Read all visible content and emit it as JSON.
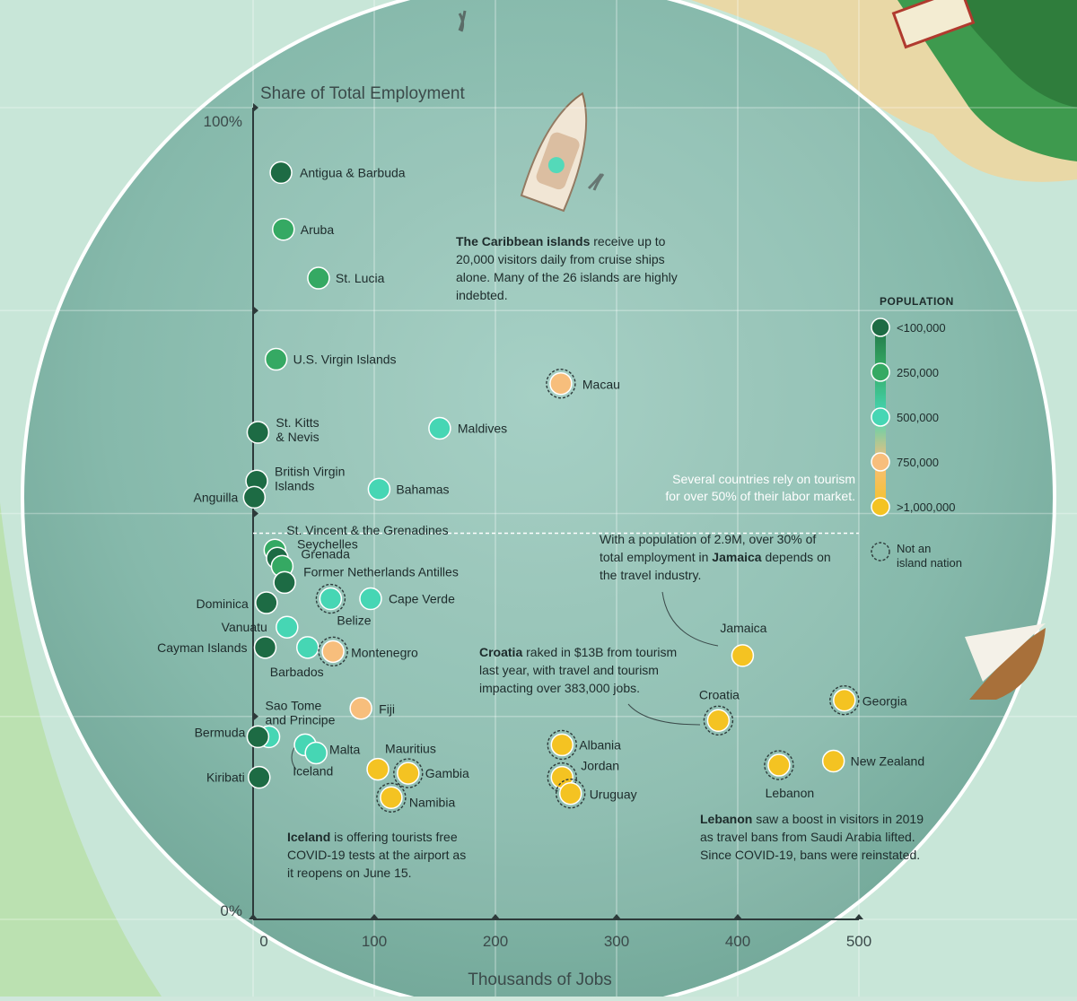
{
  "chart_data": {
    "type": "scatter",
    "xlabel": "Thousands of Jobs",
    "ylabel": "Share of Total Employment",
    "xlim": [
      0,
      500
    ],
    "ylim": [
      0,
      100
    ],
    "x_ticks": [
      "0",
      "100",
      "200",
      "300",
      "400",
      "500"
    ],
    "y_ticks": [
      "0%",
      "100%"
    ],
    "grid": true,
    "legend": {
      "title": "POPULATION",
      "placement": "right",
      "entries": [
        "<100,000",
        "250,000",
        "500,000",
        "750,000",
        ">1,000,000"
      ],
      "colors": [
        "#1d6b44",
        "#35a963",
        "#46d6b4",
        "#f7be7c",
        "#f4c322"
      ],
      "not_island_label": "Not an island nation"
    },
    "threshold_note": "Several countries rely on tourism for over 50% of their labor market.",
    "threshold_value": 50,
    "points": [
      {
        "label": "Antigua & Barbuda",
        "x": 23,
        "y": 92,
        "pop": "<100,000"
      },
      {
        "label": "Aruba",
        "x": 25,
        "y": 85,
        "pop": "250,000"
      },
      {
        "label": "St. Lucia",
        "x": 54,
        "y": 79,
        "pop": "250,000"
      },
      {
        "label": "U.S. Virgin Islands",
        "x": 19,
        "y": 69,
        "pop": "250,000"
      },
      {
        "label": "Macau",
        "x": 254,
        "y": 66,
        "pop": "750,000",
        "not_island": true
      },
      {
        "label": "St. Kitts & Nevis",
        "x": 4,
        "y": 60,
        "pop": "<100,000"
      },
      {
        "label": "Maldives",
        "x": 154,
        "y": 60.5,
        "pop": "500,000"
      },
      {
        "label": "British Virgin Islands",
        "x": 3,
        "y": 54,
        "pop": "<100,000"
      },
      {
        "label": "Anguilla",
        "x": 1,
        "y": 52,
        "pop": "<100,000"
      },
      {
        "label": "Bahamas",
        "x": 104,
        "y": 53,
        "pop": "500,000"
      },
      {
        "label": "St. Vincent & the Grenadines",
        "x": 18,
        "y": 45.5,
        "pop": "250,000"
      },
      {
        "label": "Seychelles",
        "x": 20,
        "y": 44.5,
        "pop": "<100,000"
      },
      {
        "label": "Grenada",
        "x": 24,
        "y": 43.5,
        "pop": "250,000"
      },
      {
        "label": "Former Netherlands Antilles",
        "x": 26,
        "y": 41.5,
        "pop": "<100,000"
      },
      {
        "label": "Dominica",
        "x": 11,
        "y": 39,
        "pop": "<100,000"
      },
      {
        "label": "Belize",
        "x": 64,
        "y": 39.5,
        "pop": "500,000",
        "not_island": true
      },
      {
        "label": "Cape Verde",
        "x": 97,
        "y": 39.5,
        "pop": "500,000"
      },
      {
        "label": "Vanuatu",
        "x": 28,
        "y": 36,
        "pop": "500,000"
      },
      {
        "label": "Cayman Islands",
        "x": 10,
        "y": 33.5,
        "pop": "<100,000"
      },
      {
        "label": "Barbados",
        "x": 45,
        "y": 33.5,
        "pop": "500,000"
      },
      {
        "label": "Montenegro",
        "x": 66,
        "y": 33,
        "pop": "750,000",
        "not_island": true
      },
      {
        "label": "Sao Tome and Principe",
        "x": 13,
        "y": 22.5,
        "pop": "500,000"
      },
      {
        "label": "Fiji",
        "x": 89,
        "y": 26,
        "pop": "750,000"
      },
      {
        "label": "Bermuda",
        "x": 4,
        "y": 22.5,
        "pop": "<100,000"
      },
      {
        "label": "Malta",
        "x": 43,
        "y": 21.5,
        "pop": "500,000"
      },
      {
        "label": "Iceland",
        "x": 52,
        "y": 20.5,
        "pop": "500,000"
      },
      {
        "label": "Kiribati",
        "x": 5,
        "y": 17.5,
        "pop": "<100,000"
      },
      {
        "label": "Mauritius",
        "x": 103,
        "y": 18.5,
        "pop": ">1,000,000"
      },
      {
        "label": "Gambia",
        "x": 128,
        "y": 18,
        "pop": ">1,000,000",
        "not_island": true
      },
      {
        "label": "Namibia",
        "x": 114,
        "y": 15,
        "pop": ">1,000,000",
        "not_island": true
      },
      {
        "label": "Albania",
        "x": 255,
        "y": 21.5,
        "pop": ">1,000,000",
        "not_island": true
      },
      {
        "label": "Jordan",
        "x": 255,
        "y": 17.5,
        "pop": ">1,000,000",
        "not_island": true
      },
      {
        "label": "Uruguay",
        "x": 262,
        "y": 15.5,
        "pop": ">1,000,000",
        "not_island": true
      },
      {
        "label": "Jamaica",
        "x": 404,
        "y": 32.5,
        "pop": ">1,000,000"
      },
      {
        "label": "Croatia",
        "x": 384,
        "y": 24.5,
        "pop": ">1,000,000",
        "not_island": true
      },
      {
        "label": "Georgia",
        "x": 488,
        "y": 27,
        "pop": ">1,000,000",
        "not_island": true
      },
      {
        "label": "Lebanon",
        "x": 434,
        "y": 19,
        "pop": ">1,000,000",
        "not_island": true
      },
      {
        "label": "New Zealand",
        "x": 479,
        "y": 19.5,
        "pop": ">1,000,000"
      }
    ],
    "annotations": {
      "caribbean": {
        "bold": "The Caribbean islands",
        "text": "receive up to 20,000 visitors daily from cruise ships alone. Many of the 26 islands are highly indebted."
      },
      "jamaica": {
        "pre": "With a population of 2.9M, over 30% of total employment in",
        "bold": "Jamaica",
        "post": "depends on the travel industry."
      },
      "croatia": {
        "bold": "Croatia",
        "text": "raked in $13B from tourism last year, with travel and tourism impacting over 383,000 jobs."
      },
      "iceland": {
        "bold": "Iceland",
        "text": "is offering tourists free COVID-19 tests at the airport as it reopens on June 15."
      },
      "lebanon": {
        "bold": "Lebanon",
        "text": "saw a boost in visitors in 2019 as travel bans from Saudi Arabia lifted. Since COVID-19, bans were reinstated."
      }
    }
  }
}
